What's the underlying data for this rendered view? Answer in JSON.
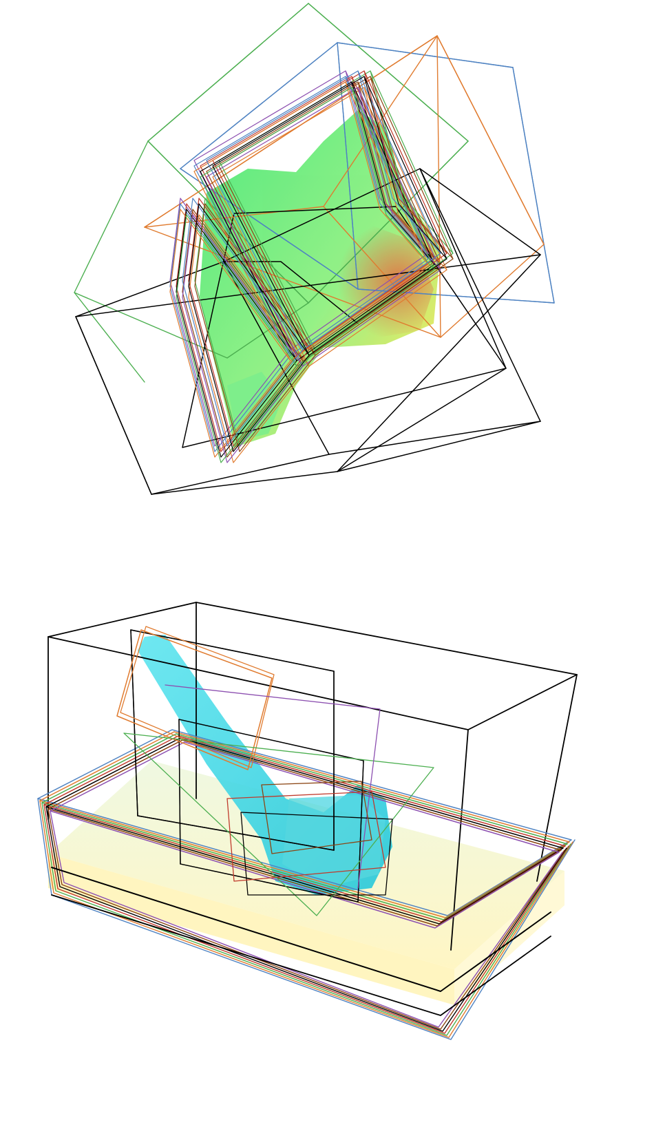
{
  "figure": {
    "panels": [
      {
        "id": "top",
        "description_visible_text": "",
        "palette": {
          "volume": [
            "#35e36c",
            "#79f07a",
            "#b8f25a",
            "#f0b43a",
            "#e05a2a"
          ],
          "boxes": [
            "#4caf50",
            "#4f83c2",
            "#e07b2f",
            "#8c4fb0",
            "#000000",
            "#c0392b",
            "#8b4513"
          ]
        }
      },
      {
        "id": "bottom",
        "description_visible_text": "",
        "palette": {
          "volume": [
            "#2dd8e6",
            "#7eeaf2",
            "#b6f0f7"
          ],
          "floor": [
            "#eaf6d6",
            "#fff7c9"
          ],
          "boxes": [
            "#4caf50",
            "#4f83c2",
            "#e07b2f",
            "#8c4fb0",
            "#000000",
            "#c0392b",
            "#8b4513"
          ]
        }
      }
    ]
  }
}
